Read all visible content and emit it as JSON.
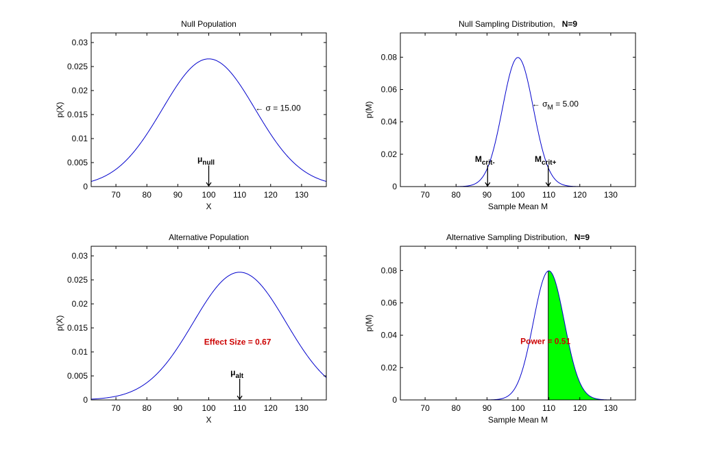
{
  "chart_data": [
    {
      "type": "line",
      "title": "Null Population",
      "title_bold": "",
      "xlabel": "X",
      "ylabel": "p(X)",
      "xlim": [
        62,
        138
      ],
      "ylim": [
        0,
        0.032
      ],
      "xticks": [
        "70",
        "80",
        "90",
        "100",
        "110",
        "120",
        "130"
      ],
      "yticks": [
        "0",
        "0.005",
        "0.01",
        "0.015",
        "0.02",
        "0.025",
        "0.03"
      ],
      "curve": {
        "mean": 100,
        "sd": 15
      },
      "line_color": "#0000cc",
      "annotations": [
        {
          "text": "← σ = 15.00",
          "x": 115,
          "y": 0.0158
        },
        {
          "text": "μ",
          "sub": "null",
          "x": 100,
          "y": 0.003,
          "arrow": true
        }
      ]
    },
    {
      "type": "line",
      "title": "Null Sampling Distribution,",
      "title_bold": "N=9",
      "xlabel": "Sample Mean M",
      "ylabel": "p(M)",
      "xlim": [
        62,
        138
      ],
      "ylim": [
        0,
        0.095
      ],
      "xticks": [
        "70",
        "80",
        "90",
        "100",
        "110",
        "120",
        "130"
      ],
      "yticks": [
        "0",
        "0.02",
        "0.04",
        "0.06",
        "0.08"
      ],
      "curve": {
        "mean": 100,
        "sd": 5
      },
      "line_color": "#0000cc",
      "annotations": [
        {
          "text": "← σ",
          "sub": "M",
          "suffix": " = 5.00",
          "x": 104.5,
          "y": 0.0495
        },
        {
          "text": "M",
          "sub": "crit-",
          "x": 90.2,
          "y": 0.009,
          "arrow": true
        },
        {
          "text": "M",
          "sub": "crit+",
          "x": 109.8,
          "y": 0.009,
          "arrow": true
        }
      ]
    },
    {
      "type": "line",
      "title": "Alternative Population",
      "title_bold": "",
      "xlabel": "X",
      "ylabel": "p(X)",
      "xlim": [
        62,
        138
      ],
      "ylim": [
        0,
        0.032
      ],
      "xticks": [
        "70",
        "80",
        "90",
        "100",
        "110",
        "120",
        "130"
      ],
      "yticks": [
        "0",
        "0.005",
        "0.01",
        "0.015",
        "0.02",
        "0.025",
        "0.03"
      ],
      "curve": {
        "mean": 110,
        "sd": 15
      },
      "line_color": "#0000cc",
      "annotations": [
        {
          "text": "Effect Size = 0.67",
          "x": 98.5,
          "y": 0.0115,
          "red": true
        },
        {
          "text": "μ",
          "sub": "alt",
          "x": 110,
          "y": 0.003,
          "arrow": true
        }
      ]
    },
    {
      "type": "area",
      "title": "Alternative Sampling Distribution,",
      "title_bold": "N=9",
      "xlabel": "Sample Mean M",
      "ylabel": "p(M)",
      "xlim": [
        62,
        138
      ],
      "ylim": [
        0,
        0.095
      ],
      "xticks": [
        "70",
        "80",
        "90",
        "100",
        "110",
        "120",
        "130"
      ],
      "yticks": [
        "0",
        "0.02",
        "0.04",
        "0.06",
        "0.08"
      ],
      "curve": {
        "mean": 110,
        "sd": 5
      },
      "curve_start": 67,
      "shade_from": 109.8,
      "line_color": "#0000cc",
      "fill_color": "#00ff00",
      "annotations": [
        {
          "text": "Power = 0.51",
          "x": 100.8,
          "y": 0.0345,
          "red": true
        }
      ]
    }
  ]
}
